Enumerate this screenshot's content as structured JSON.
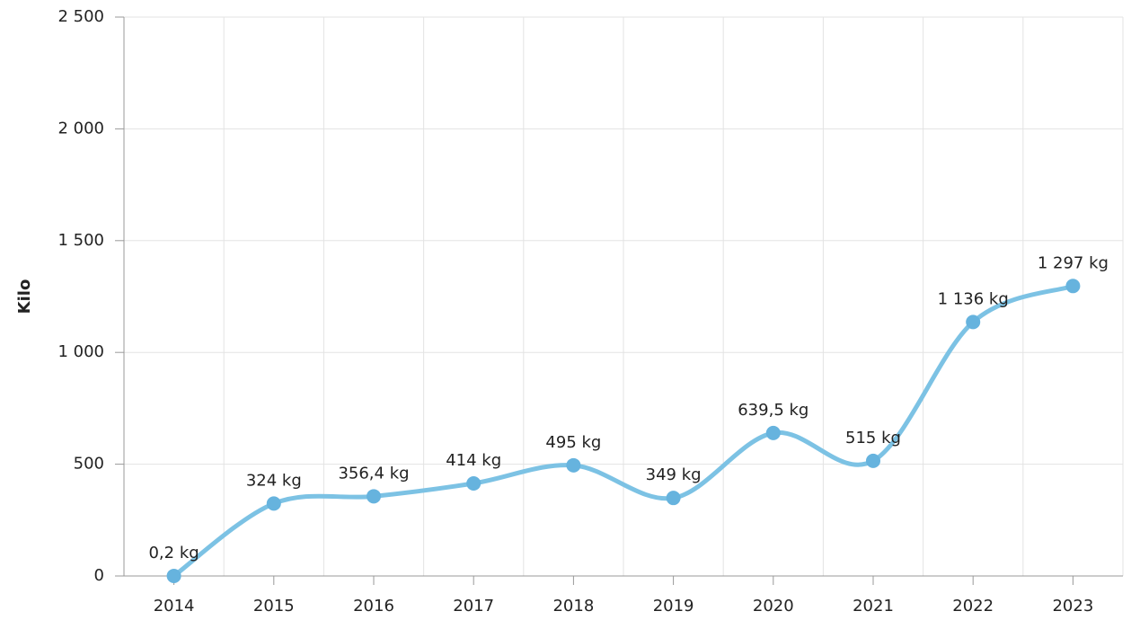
{
  "chart_data": {
    "type": "line",
    "y_label": "Kilo",
    "categories": [
      "2014",
      "2015",
      "2016",
      "2017",
      "2018",
      "2019",
      "2020",
      "2021",
      "2022",
      "2023"
    ],
    "series": [
      {
        "name": "Kilo",
        "color": "#7cc2e4",
        "marker_color": "#66b3de",
        "values": [
          0.2,
          324,
          356.4,
          414,
          495,
          349,
          639.5,
          515,
          1136,
          1297
        ],
        "value_labels": [
          "0,2 kg",
          "324 kg",
          "356,4 kg",
          "414 kg",
          "495 kg",
          "349 kg",
          "639,5 kg",
          "515 kg",
          "1 136 kg",
          "1 297 kg"
        ]
      }
    ],
    "ylim": [
      0,
      2500
    ],
    "yticks": [
      0,
      500,
      {
        "value": 1000,
        "label": "1 000"
      },
      {
        "value": 1500,
        "label": "1 500"
      },
      {
        "value": 2000,
        "label": "2 000"
      },
      {
        "value": 2500,
        "label": "2 500"
      }
    ],
    "grid": true
  }
}
